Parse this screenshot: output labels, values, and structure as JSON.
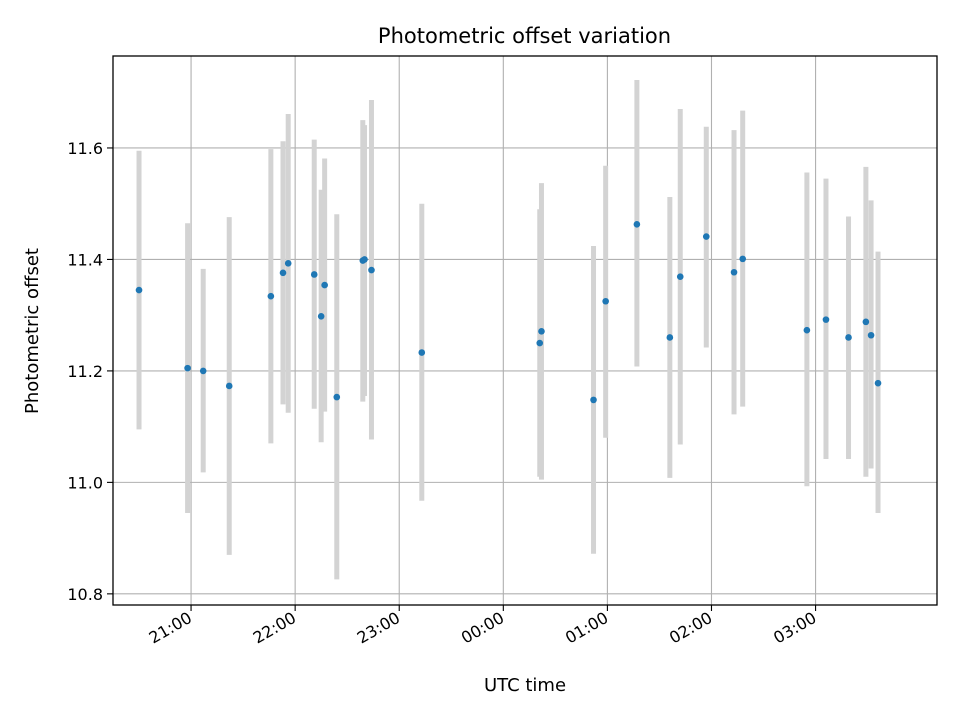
{
  "chart_data": {
    "type": "scatter",
    "title": "Photometric offset variation",
    "xlabel": "UTC time",
    "ylabel": "Photometric offset",
    "x_axis_kind": "time",
    "xlim": [
      "20:15",
      "04:10"
    ],
    "ylim": [
      10.78,
      11.765
    ],
    "grid": true,
    "x_ticks": [
      "21:00",
      "22:00",
      "23:00",
      "00:00",
      "01:00",
      "02:00",
      "03:00"
    ],
    "y_ticks": [
      "10.8",
      "11.0",
      "11.2",
      "11.4",
      "11.6"
    ],
    "point_color": "#1f77b4",
    "errorbar_color": "#d3d3d3",
    "series": [
      {
        "points": [
          {
            "x": "20:30",
            "y": 11.345,
            "ylow": 11.095,
            "yhigh": 11.595
          },
          {
            "x": "20:58",
            "y": 11.205,
            "ylow": 10.945,
            "yhigh": 11.465
          },
          {
            "x": "21:07",
            "y": 11.2,
            "ylow": 11.018,
            "yhigh": 11.383
          },
          {
            "x": "21:22",
            "y": 11.173,
            "ylow": 10.87,
            "yhigh": 11.476
          },
          {
            "x": "21:46",
            "y": 11.334,
            "ylow": 11.07,
            "yhigh": 11.598
          },
          {
            "x": "21:53",
            "y": 11.376,
            "ylow": 11.14,
            "yhigh": 11.612
          },
          {
            "x": "21:56",
            "y": 11.393,
            "ylow": 11.125,
            "yhigh": 11.661
          },
          {
            "x": "22:11",
            "y": 11.373,
            "ylow": 11.132,
            "yhigh": 11.615
          },
          {
            "x": "22:15",
            "y": 11.298,
            "ylow": 11.072,
            "yhigh": 11.525
          },
          {
            "x": "22:17",
            "y": 11.354,
            "ylow": 11.127,
            "yhigh": 11.581
          },
          {
            "x": "22:24",
            "y": 11.153,
            "ylow": 10.826,
            "yhigh": 11.481
          },
          {
            "x": "22:39",
            "y": 11.398,
            "ylow": 11.145,
            "yhigh": 11.65
          },
          {
            "x": "22:40",
            "y": 11.4,
            "ylow": 11.155,
            "yhigh": 11.641
          },
          {
            "x": "22:44",
            "y": 11.381,
            "ylow": 11.077,
            "yhigh": 11.686
          },
          {
            "x": "23:13",
            "y": 11.233,
            "ylow": 10.967,
            "yhigh": 11.5
          },
          {
            "x": "00:21",
            "y": 11.25,
            "ylow": 11.01,
            "yhigh": 11.49
          },
          {
            "x": "00:22",
            "y": 11.271,
            "ylow": 11.005,
            "yhigh": 11.537
          },
          {
            "x": "00:52",
            "y": 11.148,
            "ylow": 10.872,
            "yhigh": 11.424
          },
          {
            "x": "00:59",
            "y": 11.325,
            "ylow": 11.08,
            "yhigh": 11.568
          },
          {
            "x": "01:17",
            "y": 11.463,
            "ylow": 11.208,
            "yhigh": 11.722
          },
          {
            "x": "01:36",
            "y": 11.26,
            "ylow": 11.008,
            "yhigh": 11.512
          },
          {
            "x": "01:42",
            "y": 11.369,
            "ylow": 11.068,
            "yhigh": 11.67
          },
          {
            "x": "01:57",
            "y": 11.441,
            "ylow": 11.242,
            "yhigh": 11.638
          },
          {
            "x": "02:13",
            "y": 11.377,
            "ylow": 11.122,
            "yhigh": 11.632
          },
          {
            "x": "02:18",
            "y": 11.401,
            "ylow": 11.136,
            "yhigh": 11.667
          },
          {
            "x": "02:55",
            "y": 11.273,
            "ylow": 10.993,
            "yhigh": 11.556
          },
          {
            "x": "03:06",
            "y": 11.292,
            "ylow": 11.042,
            "yhigh": 11.545
          },
          {
            "x": "03:19",
            "y": 11.26,
            "ylow": 11.042,
            "yhigh": 11.477
          },
          {
            "x": "03:29",
            "y": 11.288,
            "ylow": 11.01,
            "yhigh": 11.566
          },
          {
            "x": "03:32",
            "y": 11.264,
            "ylow": 11.025,
            "yhigh": 11.506
          },
          {
            "x": "03:36",
            "y": 11.178,
            "ylow": 10.945,
            "yhigh": 11.414
          }
        ]
      }
    ]
  }
}
